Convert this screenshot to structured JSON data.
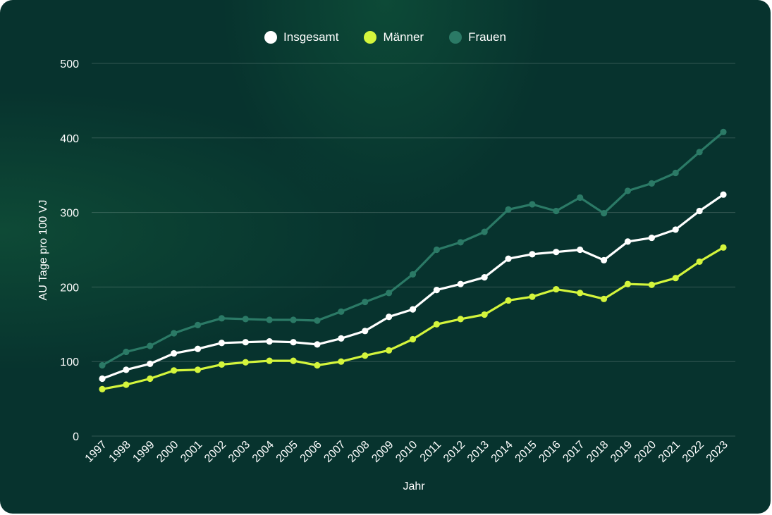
{
  "chart_data": {
    "type": "line",
    "title": "",
    "xlabel": "Jahr",
    "ylabel": "AU Tage pro 100 VJ",
    "ylim": [
      0,
      500
    ],
    "yticks": [
      0,
      100,
      200,
      300,
      400,
      500
    ],
    "grid": true,
    "legend_position": "top-center",
    "x": [
      "1997",
      "1998",
      "1999",
      "2000",
      "2001",
      "2002",
      "2003",
      "2004",
      "2005",
      "2006",
      "2007",
      "2008",
      "2009",
      "2010",
      "2011",
      "2012",
      "2013",
      "2014",
      "2015",
      "2016",
      "2017",
      "2018",
      "2019",
      "2020",
      "2021",
      "2022",
      "2023"
    ],
    "series": [
      {
        "name": "Insgesamt",
        "color": "#ffffff",
        "values": [
          77,
          89,
          97,
          111,
          117,
          125,
          126,
          127,
          126,
          123,
          131,
          141,
          160,
          170,
          196,
          204,
          213,
          238,
          244,
          247,
          250,
          236,
          261,
          266,
          277,
          302,
          324
        ]
      },
      {
        "name": "Männer",
        "color": "#d4f53c",
        "values": [
          63,
          69,
          77,
          88,
          89,
          96,
          99,
          101,
          101,
          95,
          100,
          108,
          115,
          130,
          150,
          157,
          163,
          182,
          187,
          197,
          192,
          184,
          204,
          203,
          212,
          234,
          253
        ]
      },
      {
        "name": "Frauen",
        "color": "#2b7a66",
        "values": [
          95,
          113,
          121,
          138,
          149,
          158,
          157,
          156,
          156,
          155,
          167,
          180,
          192,
          217,
          250,
          260,
          274,
          304,
          311,
          302,
          320,
          299,
          329,
          339,
          353,
          381,
          408
        ]
      }
    ]
  }
}
